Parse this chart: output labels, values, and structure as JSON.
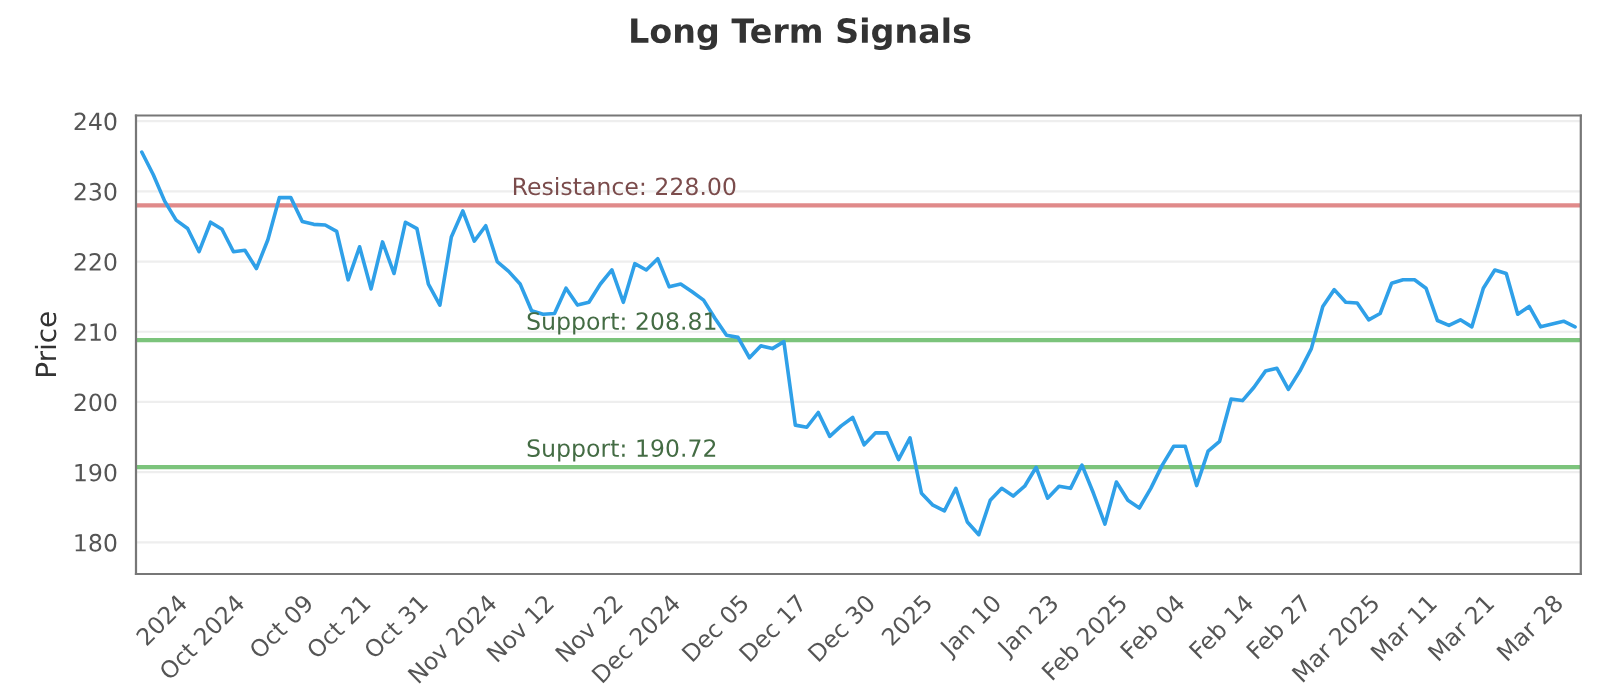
{
  "chart_data": {
    "type": "line",
    "title": "Long Term Signals",
    "ylabel": "Price",
    "categories": [
      null,
      null,
      null,
      "2024",
      null,
      null,
      null,
      null,
      "Oct 2024",
      null,
      null,
      null,
      null,
      null,
      "Oct 09",
      null,
      null,
      null,
      null,
      "Oct 21",
      null,
      null,
      null,
      null,
      "Oct 31",
      null,
      null,
      null,
      null,
      null,
      "Nov 2024",
      null,
      null,
      null,
      null,
      "Nov 12",
      null,
      null,
      null,
      null,
      null,
      "Nov 22",
      null,
      null,
      null,
      null,
      "Dec 2024",
      null,
      null,
      null,
      null,
      null,
      "Dec 05",
      null,
      null,
      null,
      null,
      "Dec 17",
      null,
      null,
      null,
      null,
      null,
      "Dec 30",
      null,
      null,
      null,
      null,
      "2025",
      null,
      null,
      null,
      null,
      null,
      "Jan 10",
      null,
      null,
      null,
      null,
      "Jan 23",
      null,
      null,
      null,
      null,
      null,
      "Feb 2025",
      null,
      null,
      null,
      null,
      "Feb 04",
      null,
      null,
      null,
      null,
      null,
      "Feb 14",
      null,
      null,
      null,
      null,
      "Feb 27",
      null,
      null,
      null,
      null,
      null,
      "Mar 2025",
      null,
      null,
      null,
      null,
      "Mar 11",
      null,
      null,
      null,
      null,
      "Mar 21",
      null,
      null,
      null,
      null,
      null,
      "Mar 28",
      null,
      null
    ],
    "series": [
      {
        "color": "#2fa0e8",
        "values": [
          235.6,
          232.4,
          228.6,
          225.9,
          224.7,
          221.4,
          225.6,
          224.6,
          221.4,
          221.6,
          219.0,
          223.1,
          229.1,
          229.1,
          225.7,
          225.3,
          225.2,
          224.3,
          217.4,
          222.1,
          216.1,
          222.8,
          218.3,
          225.6,
          224.7,
          216.8,
          213.8,
          223.5,
          227.2,
          222.9,
          225.1,
          220.0,
          218.6,
          216.8,
          213.0,
          212.5,
          212.6,
          216.2,
          213.8,
          214.2,
          216.8,
          218.8,
          214.2,
          219.7,
          218.8,
          220.4,
          216.4,
          216.8,
          215.7,
          214.5,
          211.9,
          209.5,
          209.2,
          206.3,
          208.0,
          207.6,
          208.6,
          196.7,
          196.4,
          198.5,
          195.1,
          196.6,
          197.8,
          193.9,
          195.6,
          195.6,
          191.8,
          194.9,
          187.0,
          185.3,
          184.5,
          187.7,
          182.9,
          181.1,
          186.0,
          187.7,
          186.6,
          188.0,
          190.7,
          186.3,
          188.0,
          187.7,
          191.0,
          187.0,
          182.6,
          188.6,
          186.0,
          184.9,
          187.7,
          191.0,
          193.7,
          193.7,
          188.1,
          193.0,
          194.4,
          200.4,
          200.2,
          202.1,
          204.4,
          204.8,
          201.8,
          204.4,
          207.6,
          213.6,
          216.0,
          214.2,
          214.1,
          211.7,
          212.6,
          216.9,
          217.4,
          217.4,
          216.2,
          211.6,
          210.9,
          211.7,
          210.7,
          216.2,
          218.8,
          218.3,
          212.5,
          213.6,
          210.7,
          211.1,
          211.5,
          210.7
        ]
      }
    ],
    "ylim": [
      175.5,
      240.8
    ],
    "yticks": [
      180,
      190,
      200,
      210,
      220,
      230,
      240
    ],
    "grid": "y",
    "line_style": "solid",
    "ref_lines": [
      {
        "axis": "y",
        "value": 228.0,
        "label": "Resistance: 228.00",
        "color": "#e08a8a"
      },
      {
        "axis": "y",
        "value": 208.81,
        "label": "Support: 208.81",
        "color": "#7cc47c"
      },
      {
        "axis": "y",
        "value": 190.72,
        "label": "Support: 190.72",
        "color": "#7cc47c"
      }
    ]
  }
}
